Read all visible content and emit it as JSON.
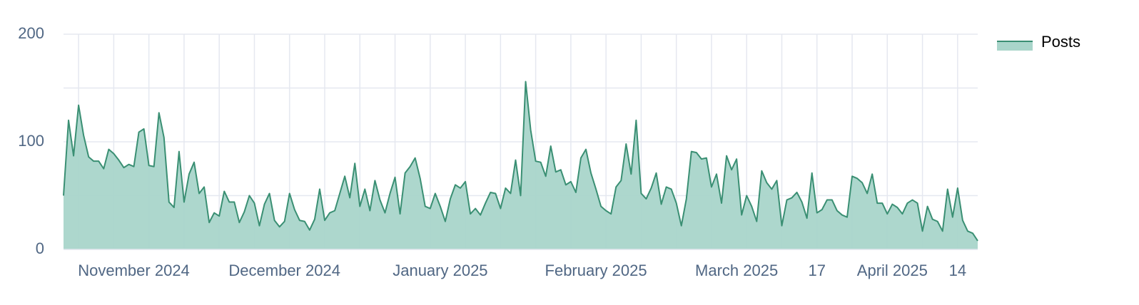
{
  "chart_data": {
    "type": "area",
    "x": [
      "2024-10-18",
      "2024-10-19",
      "2024-10-20",
      "2024-10-21",
      "2024-10-22",
      "2024-10-23",
      "2024-10-24",
      "2024-10-25",
      "2024-10-26",
      "2024-10-27",
      "2024-10-28",
      "2024-10-29",
      "2024-10-30",
      "2024-10-31",
      "2024-11-01",
      "2024-11-02",
      "2024-11-03",
      "2024-11-04",
      "2024-11-05",
      "2024-11-06",
      "2024-11-07",
      "2024-11-08",
      "2024-11-09",
      "2024-11-10",
      "2024-11-11",
      "2024-11-12",
      "2024-11-13",
      "2024-11-14",
      "2024-11-15",
      "2024-11-16",
      "2024-11-17",
      "2024-11-18",
      "2024-11-19",
      "2024-11-20",
      "2024-11-21",
      "2024-11-22",
      "2024-11-23",
      "2024-11-24",
      "2024-11-25",
      "2024-11-26",
      "2024-11-27",
      "2024-11-28",
      "2024-11-29",
      "2024-11-30",
      "2024-12-01",
      "2024-12-02",
      "2024-12-03",
      "2024-12-04",
      "2024-12-05",
      "2024-12-06",
      "2024-12-07",
      "2024-12-08",
      "2024-12-09",
      "2024-12-10",
      "2024-12-11",
      "2024-12-12",
      "2024-12-13",
      "2024-12-14",
      "2024-12-15",
      "2024-12-16",
      "2024-12-17",
      "2024-12-18",
      "2024-12-19",
      "2024-12-20",
      "2024-12-21",
      "2024-12-22",
      "2024-12-23",
      "2024-12-24",
      "2024-12-25",
      "2024-12-26",
      "2024-12-27",
      "2024-12-28",
      "2024-12-29",
      "2024-12-30",
      "2024-12-31",
      "2025-01-01",
      "2025-01-02",
      "2025-01-03",
      "2025-01-04",
      "2025-01-05",
      "2025-01-06",
      "2025-01-07",
      "2025-01-08",
      "2025-01-09",
      "2025-01-10",
      "2025-01-11",
      "2025-01-12",
      "2025-01-13",
      "2025-01-14",
      "2025-01-15",
      "2025-01-16",
      "2025-01-17",
      "2025-01-18",
      "2025-01-19",
      "2025-01-20",
      "2025-01-21",
      "2025-01-22",
      "2025-01-23",
      "2025-01-24",
      "2025-01-25",
      "2025-01-26",
      "2025-01-27",
      "2025-01-28",
      "2025-01-29",
      "2025-01-30",
      "2025-01-31",
      "2025-02-01",
      "2025-02-02",
      "2025-02-03",
      "2025-02-04",
      "2025-02-05",
      "2025-02-06",
      "2025-02-07",
      "2025-02-08",
      "2025-02-09",
      "2025-02-10",
      "2025-02-11",
      "2025-02-12",
      "2025-02-13",
      "2025-02-14",
      "2025-02-15",
      "2025-02-16",
      "2025-02-17",
      "2025-02-18",
      "2025-02-19",
      "2025-02-20",
      "2025-02-21",
      "2025-02-22",
      "2025-02-23",
      "2025-02-24",
      "2025-02-25",
      "2025-02-26",
      "2025-02-27",
      "2025-02-28",
      "2025-03-01",
      "2025-03-02",
      "2025-03-03",
      "2025-03-04",
      "2025-03-05",
      "2025-03-06",
      "2025-03-07",
      "2025-03-08",
      "2025-03-09",
      "2025-03-10",
      "2025-03-11",
      "2025-03-12",
      "2025-03-13",
      "2025-03-14",
      "2025-03-15",
      "2025-03-16",
      "2025-03-17",
      "2025-03-18",
      "2025-03-19",
      "2025-03-20",
      "2025-03-21",
      "2025-03-22",
      "2025-03-23",
      "2025-03-24",
      "2025-03-25",
      "2025-03-26",
      "2025-03-27",
      "2025-03-28",
      "2025-03-29",
      "2025-03-30",
      "2025-03-31",
      "2025-04-01",
      "2025-04-02",
      "2025-04-03",
      "2025-04-04",
      "2025-04-05",
      "2025-04-06",
      "2025-04-07",
      "2025-04-08",
      "2025-04-09",
      "2025-04-10",
      "2025-04-11",
      "2025-04-12",
      "2025-04-13",
      "2025-04-14",
      "2025-04-15",
      "2025-04-16",
      "2025-04-17",
      "2025-04-18"
    ],
    "series": [
      {
        "name": "Posts",
        "color": "#3a8f73",
        "fill": "#a9d5ca",
        "values": [
          50,
          120,
          87,
          134,
          106,
          86,
          82,
          82,
          75,
          93,
          89,
          83,
          76,
          79,
          77,
          109,
          112,
          78,
          77,
          127,
          104,
          44,
          39,
          91,
          44,
          70,
          81,
          52,
          58,
          25,
          34,
          31,
          54,
          44,
          44,
          25,
          35,
          50,
          43,
          22,
          42,
          52,
          27,
          21,
          26,
          52,
          37,
          27,
          26,
          18,
          28,
          56,
          27,
          34,
          36,
          52,
          68,
          48,
          80,
          40,
          56,
          36,
          64,
          46,
          34,
          52,
          67,
          33,
          71,
          77,
          85,
          66,
          40,
          38,
          52,
          40,
          26,
          47,
          60,
          57,
          63,
          33,
          38,
          32,
          43,
          53,
          52,
          38,
          57,
          52,
          83,
          50,
          156,
          111,
          82,
          81,
          68,
          96,
          72,
          74,
          60,
          63,
          53,
          85,
          93,
          71,
          56,
          40,
          36,
          33,
          58,
          64,
          98,
          70,
          120,
          52,
          47,
          57,
          71,
          42,
          58,
          56,
          43,
          22,
          47,
          91,
          90,
          84,
          85,
          58,
          70,
          43,
          87,
          74,
          84,
          32,
          50,
          40,
          26,
          73,
          62,
          56,
          64,
          22,
          46,
          48,
          53,
          44,
          29,
          71,
          34,
          37,
          46,
          46,
          36,
          32,
          30,
          68,
          66,
          62,
          52,
          70,
          43,
          43,
          33,
          42,
          39,
          33,
          43,
          46,
          43,
          17,
          40,
          28,
          26,
          17,
          56,
          30,
          57,
          27,
          17,
          15,
          8
        ]
      }
    ],
    "xlim": [
      "2024-10-18",
      "2025-04-18"
    ],
    "xticks": [
      {
        "value": "2024-11-01",
        "label": "November 2024"
      },
      {
        "value": "2024-12-01",
        "label": "December 2024"
      },
      {
        "value": "2025-01-01",
        "label": "January 2025"
      },
      {
        "value": "2025-02-01",
        "label": "February 2025"
      },
      {
        "value": "2025-03-01",
        "label": "March 2025"
      },
      {
        "value": "2025-03-17",
        "label": "17"
      },
      {
        "value": "2025-04-01",
        "label": "April 2025"
      },
      {
        "value": "2025-04-14",
        "label": "14"
      }
    ],
    "ylim": [
      0,
      200
    ],
    "yticks": [
      0,
      100,
      200
    ],
    "grid": true,
    "legend": "top-right"
  }
}
